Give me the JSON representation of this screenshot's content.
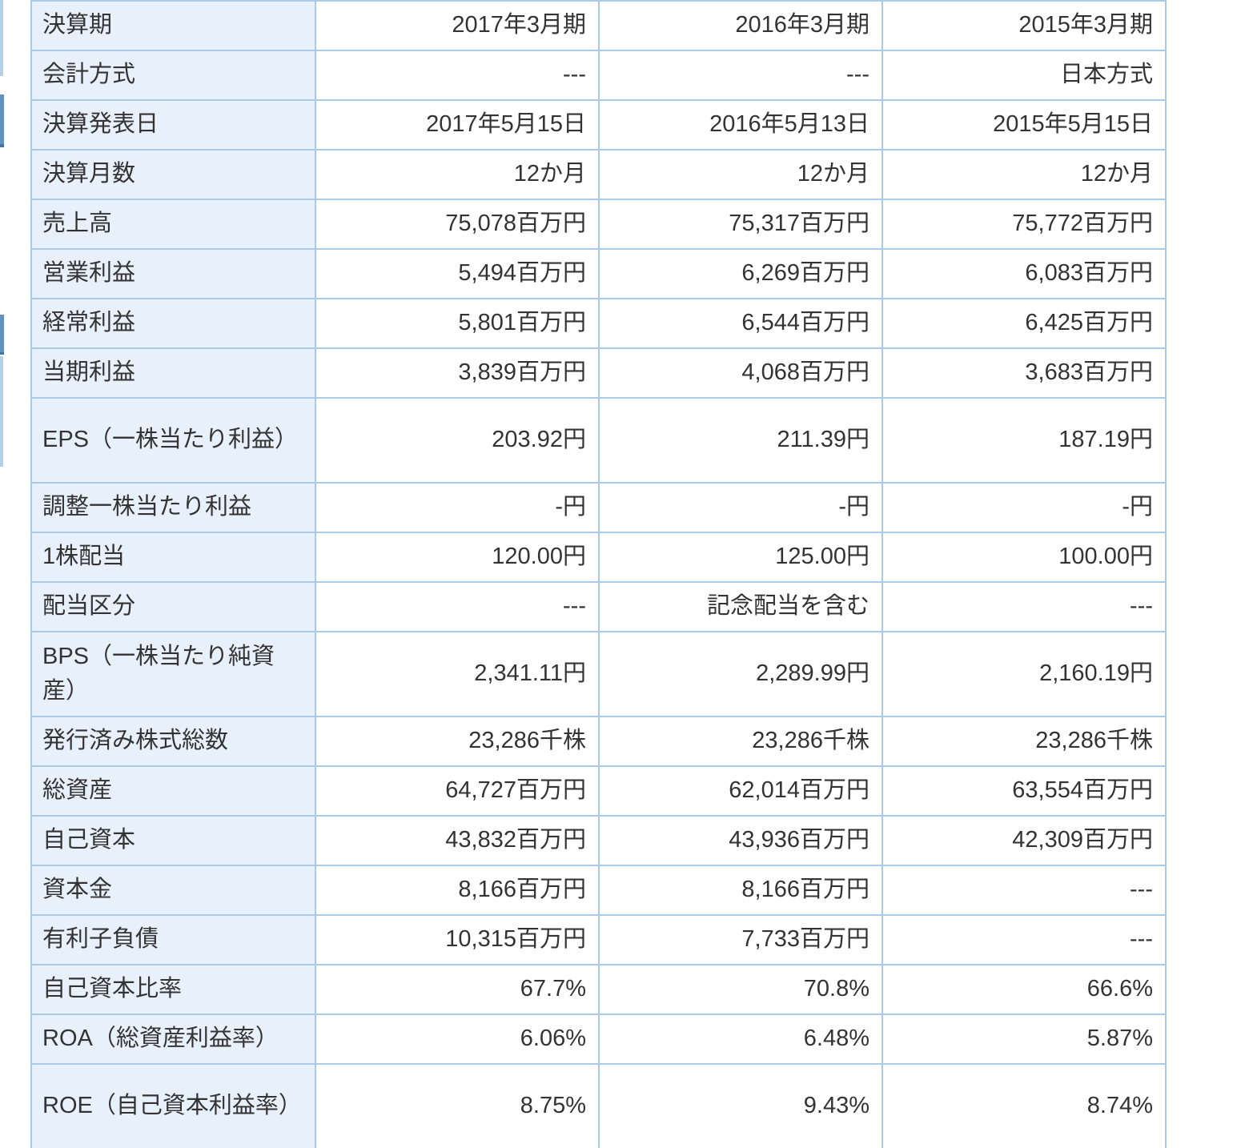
{
  "table": {
    "rows": [
      {
        "label": "決算期",
        "values": [
          "2017年3月期",
          "2016年3月期",
          "2015年3月期"
        ],
        "tall": false
      },
      {
        "label": "会計方式",
        "values": [
          "---",
          "---",
          "日本方式"
        ],
        "tall": false
      },
      {
        "label": "決算発表日",
        "values": [
          "2017年5月15日",
          "2016年5月13日",
          "2015年5月15日"
        ],
        "tall": false
      },
      {
        "label": "決算月数",
        "values": [
          "12か月",
          "12か月",
          "12か月"
        ],
        "tall": false
      },
      {
        "label": "売上高",
        "values": [
          "75,078百万円",
          "75,317百万円",
          "75,772百万円"
        ],
        "tall": false
      },
      {
        "label": "営業利益",
        "values": [
          "5,494百万円",
          "6,269百万円",
          "6,083百万円"
        ],
        "tall": false
      },
      {
        "label": "経常利益",
        "values": [
          "5,801百万円",
          "6,544百万円",
          "6,425百万円"
        ],
        "tall": false
      },
      {
        "label": "当期利益",
        "values": [
          "3,839百万円",
          "4,068百万円",
          "3,683百万円"
        ],
        "tall": false
      },
      {
        "label": "EPS（一株当たり利益）",
        "values": [
          "203.92円",
          "211.39円",
          "187.19円"
        ],
        "tall": true
      },
      {
        "label": "調整一株当たり利益",
        "values": [
          "-円",
          "-円",
          "-円"
        ],
        "tall": false
      },
      {
        "label": "1株配当",
        "values": [
          "120.00円",
          "125.00円",
          "100.00円"
        ],
        "tall": false
      },
      {
        "label": "配当区分",
        "values": [
          "---",
          "記念配当を含む",
          "---"
        ],
        "tall": false
      },
      {
        "label": "BPS（一株当たり純資産）",
        "values": [
          "2,341.11円",
          "2,289.99円",
          "2,160.19円"
        ],
        "tall": true
      },
      {
        "label": "発行済み株式総数",
        "values": [
          "23,286千株",
          "23,286千株",
          "23,286千株"
        ],
        "tall": false
      },
      {
        "label": "総資産",
        "values": [
          "64,727百万円",
          "62,014百万円",
          "63,554百万円"
        ],
        "tall": false
      },
      {
        "label": "自己資本",
        "values": [
          "43,832百万円",
          "43,936百万円",
          "42,309百万円"
        ],
        "tall": false
      },
      {
        "label": "資本金",
        "values": [
          "8,166百万円",
          "8,166百万円",
          "---"
        ],
        "tall": false
      },
      {
        "label": "有利子負債",
        "values": [
          "10,315百万円",
          "7,733百万円",
          "---"
        ],
        "tall": false
      },
      {
        "label": "自己資本比率",
        "values": [
          "67.7%",
          "70.8%",
          "66.6%"
        ],
        "tall": false
      },
      {
        "label": "ROA（総資産利益率）",
        "values": [
          "6.06%",
          "6.48%",
          "5.87%"
        ],
        "tall": false
      },
      {
        "label": "ROE（自己資本利益率）",
        "values": [
          "8.75%",
          "9.43%",
          "8.74%"
        ],
        "tall": true
      }
    ]
  },
  "colors": {
    "label_cell_bg": "#e8f1fb",
    "table_border": "#a9cbe9",
    "clipped_row_bg": "#dbe8f6",
    "text": "#333333",
    "edge_fragment_light": "#b3d1ed",
    "edge_fragment_dark": "#6292c0",
    "edge_fragment_dark_edge": "#47729e"
  }
}
